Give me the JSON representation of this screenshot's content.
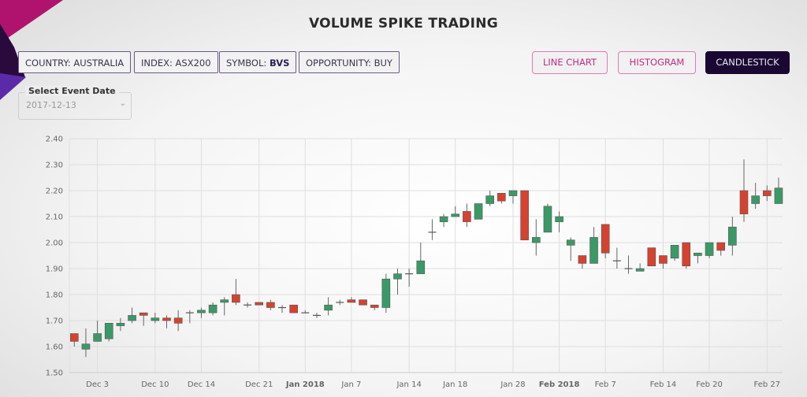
{
  "header": {
    "title": "VOLUME SPIKE TRADING"
  },
  "filters": [
    {
      "label": "COUNTRY: ",
      "value": "AUSTRALIA"
    },
    {
      "label": "INDEX: ",
      "value": "ASX200"
    },
    {
      "label": "SYMBOL: ",
      "value": "BVS"
    },
    {
      "label": "OPPORTUNITY: ",
      "value": "BUY"
    }
  ],
  "view_buttons": {
    "line": "LINE CHART",
    "histogram": "HISTOGRAM",
    "candlestick": "CANDLESTICK",
    "active": "candlestick"
  },
  "event_date": {
    "label": "Select Event Date",
    "value": "2017-12-13"
  },
  "colors": {
    "up": "#3a9a67",
    "down": "#d6422f",
    "accent": "#c02d86",
    "active_button": "#1a0833"
  },
  "chart_data": {
    "type": "candlestick",
    "ylim": [
      1.5,
      2.4
    ],
    "y_ticks": [
      "1.50",
      "1.60",
      "1.70",
      "1.80",
      "1.90",
      "2.00",
      "2.10",
      "2.20",
      "2.30",
      "2.40"
    ],
    "grid": true,
    "x_ticks": [
      {
        "label": "Dec 3",
        "candle": 3
      },
      {
        "label": "Dec 10",
        "candle": 8
      },
      {
        "label": "Dec 14",
        "candle": 12
      },
      {
        "label": "Dec 21",
        "candle": 17
      },
      {
        "label": "Jan 2018",
        "candle": 21,
        "bold": true
      },
      {
        "label": "Jan 7",
        "candle": 25
      },
      {
        "label": "Jan 14",
        "candle": 30
      },
      {
        "label": "Jan 18",
        "candle": 34
      },
      {
        "label": "Jan 28",
        "candle": 39
      },
      {
        "label": "Feb 2018",
        "candle": 43,
        "bold": true
      },
      {
        "label": "Feb 7",
        "candle": 47
      },
      {
        "label": "Feb 14",
        "candle": 52
      },
      {
        "label": "Feb 20",
        "candle": 56
      },
      {
        "label": "Feb 27",
        "candle": 61
      }
    ],
    "ohlc": [
      [
        1.65,
        1.65,
        1.6,
        1.62
      ],
      [
        1.59,
        1.67,
        1.56,
        1.61
      ],
      [
        1.62,
        1.7,
        1.62,
        1.65
      ],
      [
        1.63,
        1.69,
        1.62,
        1.69
      ],
      [
        1.68,
        1.71,
        1.66,
        1.69
      ],
      [
        1.7,
        1.75,
        1.69,
        1.72
      ],
      [
        1.73,
        1.73,
        1.68,
        1.72
      ],
      [
        1.7,
        1.73,
        1.69,
        1.71
      ],
      [
        1.71,
        1.72,
        1.67,
        1.7
      ],
      [
        1.71,
        1.74,
        1.66,
        1.69
      ],
      [
        1.73,
        1.74,
        1.69,
        1.73
      ],
      [
        1.73,
        1.75,
        1.71,
        1.74
      ],
      [
        1.73,
        1.77,
        1.72,
        1.76
      ],
      [
        1.77,
        1.79,
        1.72,
        1.78
      ],
      [
        1.8,
        1.86,
        1.76,
        1.77
      ],
      [
        1.76,
        1.77,
        1.75,
        1.76
      ],
      [
        1.77,
        1.77,
        1.76,
        1.76
      ],
      [
        1.77,
        1.78,
        1.74,
        1.75
      ],
      [
        1.75,
        1.76,
        1.73,
        1.75
      ],
      [
        1.76,
        1.76,
        1.73,
        1.73
      ],
      [
        1.73,
        1.74,
        1.73,
        1.73
      ],
      [
        1.72,
        1.73,
        1.71,
        1.72
      ],
      [
        1.74,
        1.79,
        1.72,
        1.76
      ],
      [
        1.77,
        1.78,
        1.76,
        1.77
      ],
      [
        1.78,
        1.79,
        1.77,
        1.77
      ],
      [
        1.78,
        1.78,
        1.76,
        1.76
      ],
      [
        1.76,
        1.76,
        1.74,
        1.75
      ],
      [
        1.75,
        1.88,
        1.73,
        1.86
      ],
      [
        1.86,
        1.9,
        1.8,
        1.88
      ],
      [
        1.88,
        1.9,
        1.83,
        1.88
      ],
      [
        1.88,
        2.0,
        1.88,
        1.93
      ],
      [
        2.04,
        2.09,
        2.01,
        2.04
      ],
      [
        2.08,
        2.11,
        2.06,
        2.1
      ],
      [
        2.1,
        2.14,
        2.1,
        2.11
      ],
      [
        2.12,
        2.15,
        2.06,
        2.08
      ],
      [
        2.09,
        2.15,
        2.09,
        2.15
      ],
      [
        2.15,
        2.2,
        2.14,
        2.18
      ],
      [
        2.19,
        2.19,
        2.15,
        2.16
      ],
      [
        2.18,
        2.2,
        2.15,
        2.2
      ],
      [
        2.2,
        2.2,
        2.01,
        2.01
      ],
      [
        2.0,
        2.09,
        1.95,
        2.02
      ],
      [
        2.04,
        2.15,
        2.04,
        2.14
      ],
      [
        2.08,
        2.12,
        2.04,
        2.1
      ],
      [
        1.99,
        2.02,
        1.93,
        2.01
      ],
      [
        1.95,
        1.95,
        1.9,
        1.92
      ],
      [
        1.92,
        2.06,
        1.92,
        2.02
      ],
      [
        2.07,
        2.07,
        1.94,
        1.96
      ],
      [
        1.93,
        1.98,
        1.9,
        1.93
      ],
      [
        1.9,
        1.95,
        1.88,
        1.9
      ],
      [
        1.89,
        1.92,
        1.89,
        1.9
      ],
      [
        1.98,
        1.98,
        1.91,
        1.91
      ],
      [
        1.95,
        1.95,
        1.9,
        1.92
      ],
      [
        1.94,
        1.99,
        1.93,
        1.99
      ],
      [
        2.0,
        2.0,
        1.9,
        1.91
      ],
      [
        1.95,
        1.96,
        1.92,
        1.96
      ],
      [
        1.95,
        2.0,
        1.94,
        2.0
      ],
      [
        2.0,
        2.0,
        1.95,
        1.97
      ],
      [
        1.99,
        2.1,
        1.95,
        2.06
      ],
      [
        2.2,
        2.32,
        2.08,
        2.11
      ],
      [
        2.15,
        2.23,
        2.13,
        2.18
      ],
      [
        2.2,
        2.22,
        2.16,
        2.18
      ],
      [
        2.15,
        2.25,
        2.15,
        2.21
      ]
    ]
  }
}
